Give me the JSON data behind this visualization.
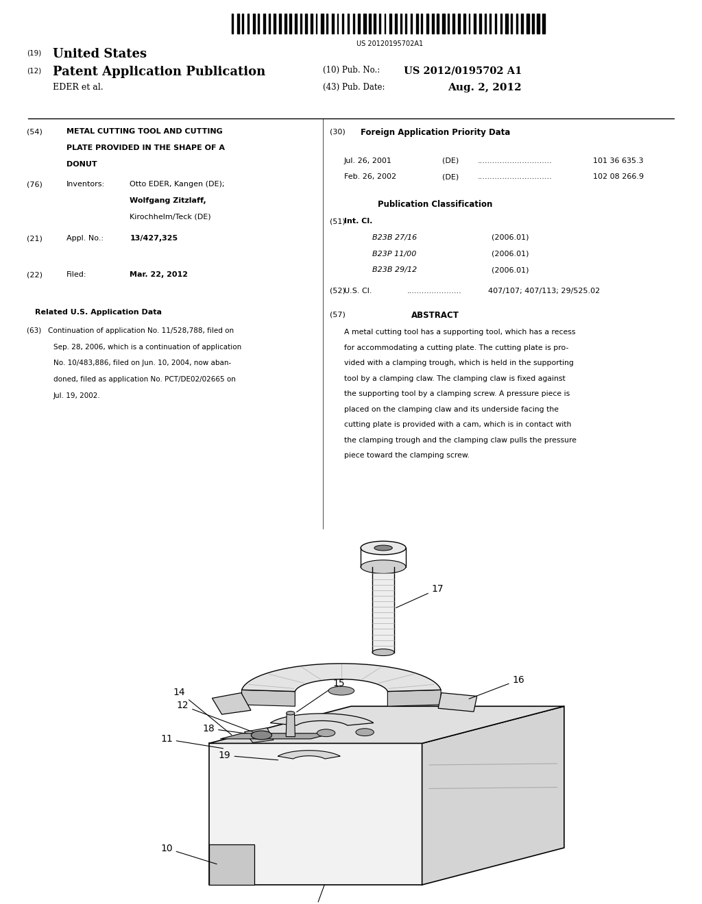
{
  "background_color": "#ffffff",
  "barcode_text": "US 20120195702A1",
  "header": {
    "country_label": "(19)",
    "country": "United States",
    "type_label": "(12)",
    "type": "Patent Application Publication",
    "pub_no_label": "(10) Pub. No.:",
    "pub_no": "US 2012/0195702 A1",
    "inventor_label": "EDER et al.",
    "pub_date_label": "(43) Pub. Date:",
    "pub_date": "Aug. 2, 2012"
  },
  "left_col": {
    "title_num": "(54)",
    "title_line1": "METAL CUTTING TOOL AND CUTTING",
    "title_line2": "PLATE PROVIDED IN THE SHAPE OF A",
    "title_line3": "DONUT",
    "inventors_num": "(76)",
    "inventors_label": "Inventors:",
    "inventor1": "Otto EDER, Kangen (DE);",
    "inventor2": "Wolfgang Zitzlaff,",
    "inventor3": "Kirochhelm/Teck (DE)",
    "appl_num": "(21)",
    "appl_label": "Appl. No.:",
    "appl_no": "13/427,325",
    "filed_num": "(22)",
    "filed_label": "Filed:",
    "filed_date": "Mar. 22, 2012",
    "related_header": "Related U.S. Application Data",
    "related_num": "(63)",
    "related_line1": "Continuation of application No. 11/528,788, filed on",
    "related_line2": "Sep. 28, 2006, which is a continuation of application",
    "related_line3": "No. 10/483,886, filed on Jun. 10, 2004, now aban-",
    "related_line4": "doned, filed as application No. PCT/DE02/02665 on",
    "related_line5": "Jul. 19, 2002."
  },
  "right_col": {
    "foreign_header_num": "(30)",
    "foreign_header": "Foreign Application Priority Data",
    "date1": "Jul. 26, 2001",
    "country1": "(DE)",
    "dots1": "..............................",
    "number1": "101 36 635.3",
    "date2": "Feb. 26, 2002",
    "country2": "(DE)",
    "dots2": "..............................",
    "number2": "102 08 266.9",
    "pub_class_header": "Publication Classification",
    "int_cl_num": "(51)",
    "int_cl_label": "Int. Cl.",
    "cl1_code": "B23B 27/16",
    "cl1_year": "(2006.01)",
    "cl2_code": "B23P 11/00",
    "cl2_year": "(2006.01)",
    "cl3_code": "B23B 29/12",
    "cl3_year": "(2006.01)",
    "us_cl_num": "(52)",
    "us_cl_label": "U.S. Cl.",
    "us_cl_dots": "......................",
    "us_cl_value": "407/107; 407/113; 29/525.02",
    "abstract_num": "(57)",
    "abstract_header": "ABSTRACT",
    "abstract_line1": "A metal cutting tool has a supporting tool, which has a recess",
    "abstract_line2": "for accommodating a cutting plate. The cutting plate is pro-",
    "abstract_line3": "vided with a clamping trough, which is held in the supporting",
    "abstract_line4": "tool by a clamping claw. The clamping claw is fixed against",
    "abstract_line5": "the supporting tool by a clamping screw. A pressure piece is",
    "abstract_line6": "placed on the clamping claw and its underside facing the",
    "abstract_line7": "cutting plate is provided with a cam, which is in contact with",
    "abstract_line8": "the clamping trough and the clamping claw pulls the pressure",
    "abstract_line9": "piece toward the clamping screw."
  }
}
